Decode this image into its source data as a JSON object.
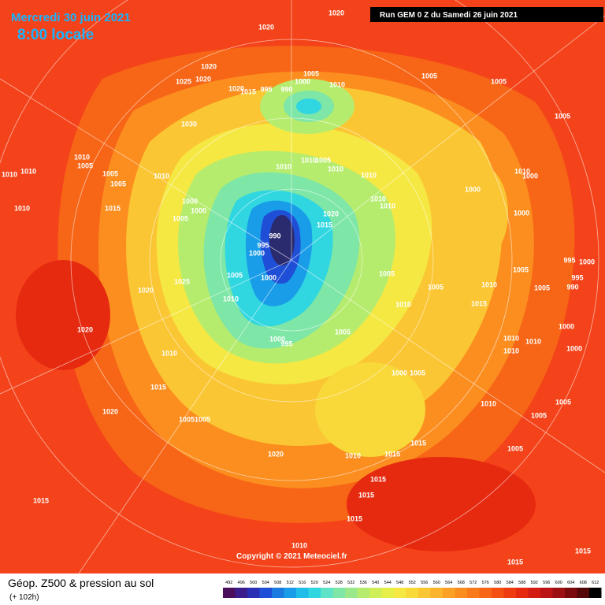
{
  "header": {
    "date": "Mercredi 30 juin 2021",
    "time": "8:00 locale",
    "run": "Run GEM 0 Z du Samedi 26 juin 2021"
  },
  "copyright": "Copyright © 2021 Meteociel.fr",
  "footer": {
    "title": "Géop. Z500 & pression au sol",
    "lead": "(+ 102h)"
  },
  "scale": {
    "values": [
      492,
      496,
      500,
      504,
      508,
      512,
      516,
      520,
      524,
      528,
      532,
      536,
      540,
      544,
      548,
      552,
      556,
      560,
      564,
      568,
      572,
      576,
      580,
      584,
      588,
      592,
      596,
      600,
      604,
      608,
      612
    ],
    "colors": [
      "#4b0f5e",
      "#3c1d8c",
      "#2a2fb5",
      "#1f4fd6",
      "#1a7ae0",
      "#1a9de8",
      "#20bde8",
      "#30d6e0",
      "#5ee3c8",
      "#7ee6a6",
      "#9be88a",
      "#b6ec6e",
      "#cfee58",
      "#e6ef48",
      "#f5e842",
      "#f9d83a",
      "#fbc633",
      "#fcb42c",
      "#fca125",
      "#fb8e1f",
      "#f97a1a",
      "#f76516",
      "#f45012",
      "#ef3b10",
      "#e62a10",
      "#d41d12",
      "#bb1414",
      "#9c0f12",
      "#7a0a0e",
      "#540708",
      "#000000"
    ]
  },
  "pressure_labels": [
    1020,
    1020,
    1020,
    1020,
    1025,
    1020,
    1015,
    995,
    990,
    1000,
    1005,
    1010,
    1005,
    1005,
    1030,
    1005,
    1010,
    1005,
    1010,
    1010,
    1005,
    1005,
    1010,
    1010,
    1010,
    1005,
    1010,
    1010,
    1000,
    1010,
    1000,
    1010,
    1015,
    1000,
    1000,
    1005,
    1010,
    1010,
    1020,
    1015,
    990,
    995,
    1000,
    1000,
    1005,
    995,
    1000,
    995,
    990,
    1000,
    1005,
    1025,
    1020,
    1005,
    1005,
    1010,
    1005,
    1010,
    1010,
    1015,
    1020,
    1000,
    1000,
    995,
    1005,
    1010,
    1010,
    1010,
    1000,
    1010,
    1000,
    1005,
    1015,
    1010,
    1005,
    1020,
    1005,
    1005,
    1005,
    1015,
    1015,
    1020,
    1010,
    1005,
    1015,
    1015,
    1015,
    1015,
    1010,
    1015,
    1015
  ]
}
